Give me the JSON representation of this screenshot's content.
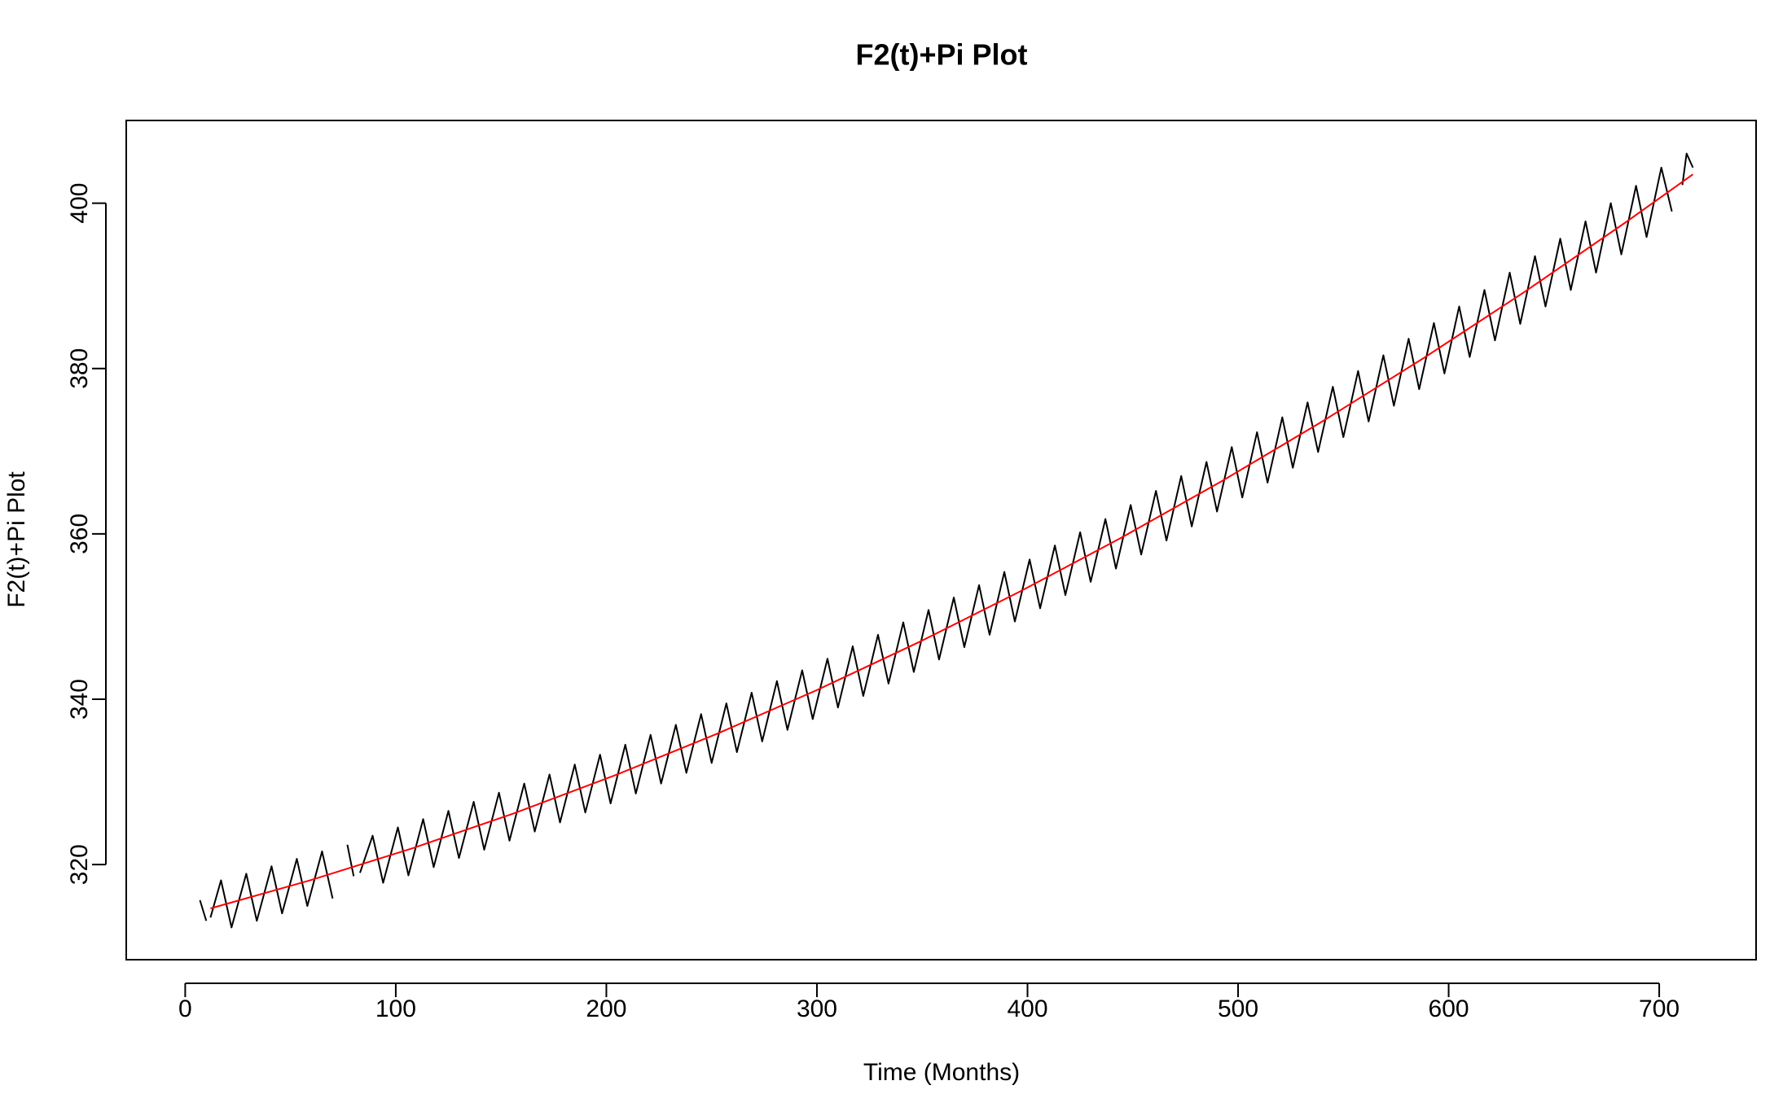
{
  "chart_data": {
    "type": "line",
    "title": "F2(t)+Pi Plot",
    "x_label": "Time (Months)",
    "y_label": "F2(t)+Pi Plot",
    "xlim": [
      -28,
      746
    ],
    "ylim": [
      308.5,
      410
    ],
    "xticks": [
      0,
      100,
      200,
      300,
      400,
      500,
      600,
      700
    ],
    "yticks": [
      320,
      340,
      360,
      380,
      400
    ],
    "grid": false,
    "series": [
      {
        "color": "#000000",
        "x": [
          7,
          10,
          11,
          12,
          17,
          22,
          29,
          34,
          41,
          46,
          53,
          58,
          65,
          70,
          74,
          77,
          80,
          81,
          83,
          89,
          94,
          101,
          106,
          113,
          118,
          125,
          130,
          137,
          142,
          149,
          154,
          161,
          166,
          173,
          178,
          185,
          190,
          197,
          202,
          209,
          214,
          221,
          226,
          233,
          238,
          245,
          250,
          257,
          262,
          269,
          274,
          281,
          286,
          293,
          298,
          305,
          310,
          317,
          322,
          329,
          334,
          341,
          346,
          353,
          358,
          365,
          370,
          377,
          382,
          389,
          394,
          401,
          406,
          413,
          418,
          425,
          430,
          437,
          442,
          449,
          454,
          461,
          466,
          473,
          478,
          485,
          490,
          497,
          502,
          509,
          514,
          521,
          526,
          533,
          538,
          545,
          550,
          557,
          562,
          569,
          574,
          581,
          586,
          593,
          598,
          605,
          610,
          617,
          622,
          629,
          634,
          641,
          646,
          653,
          658,
          665,
          670,
          677,
          682,
          689,
          694,
          701,
          706,
          708,
          711,
          713,
          716
        ],
        "values": [
          315.7,
          313.2,
          null,
          313.6,
          318.1,
          312.4,
          318.9,
          313.2,
          319.8,
          314.1,
          320.7,
          315.0,
          321.6,
          315.9,
          null,
          322.4,
          318.6,
          null,
          319.0,
          323.5,
          317.8,
          324.5,
          318.7,
          325.5,
          319.7,
          326.5,
          320.8,
          327.6,
          321.8,
          328.7,
          322.9,
          329.8,
          324.0,
          330.9,
          325.1,
          332.1,
          326.3,
          333.3,
          327.4,
          334.5,
          328.6,
          335.7,
          329.8,
          336.9,
          331.1,
          338.2,
          332.3,
          339.5,
          333.6,
          340.8,
          334.9,
          342.2,
          336.3,
          343.5,
          337.6,
          344.9,
          339.0,
          346.4,
          340.4,
          347.8,
          341.9,
          349.3,
          343.3,
          350.8,
          344.8,
          352.3,
          346.3,
          353.8,
          347.8,
          355.4,
          349.4,
          356.9,
          351.0,
          358.6,
          352.6,
          360.2,
          354.2,
          361.8,
          355.8,
          363.5,
          357.5,
          365.2,
          359.2,
          367.0,
          360.9,
          368.7,
          362.7,
          370.5,
          364.4,
          372.3,
          366.2,
          374.1,
          368.0,
          375.9,
          369.9,
          377.8,
          371.7,
          379.7,
          373.6,
          381.6,
          375.5,
          383.6,
          377.5,
          385.5,
          379.4,
          387.5,
          381.4,
          389.5,
          383.4,
          391.6,
          385.4,
          393.6,
          387.5,
          395.7,
          389.5,
          397.8,
          391.6,
          400.0,
          393.8,
          402.1,
          395.9,
          404.3,
          399.0,
          null,
          402.2,
          406.0,
          404.3
        ]
      },
      {
        "color": "#ff0000",
        "x": [
          12,
          60,
          108,
          156,
          204,
          252,
          300,
          348,
          396,
          444,
          492,
          540,
          588,
          636,
          684,
          716
        ],
        "values": [
          314.7,
          318.15,
          321.98,
          326.19,
          330.79,
          335.76,
          341.11,
          346.85,
          352.97,
          359.46,
          366.34,
          373.6,
          381.24,
          389.26,
          397.67,
          403.48
        ]
      }
    ]
  }
}
